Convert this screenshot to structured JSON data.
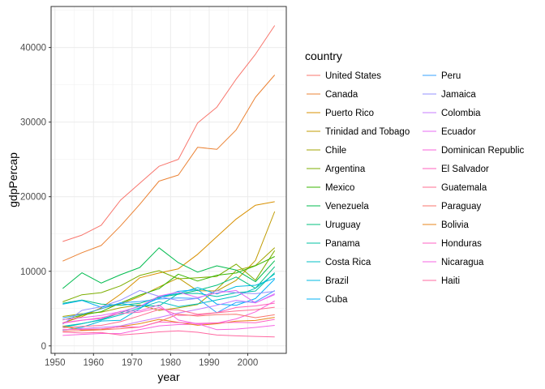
{
  "chart_data": {
    "type": "line",
    "xlabel": "year",
    "ylabel": "gdpPercap",
    "xlim": [
      1949,
      2010
    ],
    "ylim": [
      -1000,
      45500
    ],
    "x_ticks": [
      1950,
      1960,
      1970,
      1980,
      1990,
      2000
    ],
    "x_tick_labels": [
      "1950",
      "1960",
      "1970",
      "1980",
      "1990",
      "2000"
    ],
    "y_ticks": [
      0,
      10000,
      20000,
      30000,
      40000
    ],
    "y_tick_labels": [
      "0",
      "10000",
      "20000",
      "30000",
      "40000"
    ],
    "grid": true,
    "legend_title": "country",
    "legend_position": "right",
    "x": [
      1952,
      1957,
      1962,
      1967,
      1972,
      1977,
      1982,
      1987,
      1992,
      1997,
      2002,
      2007
    ],
    "series": [
      {
        "name": "United States",
        "color": "#F8766D",
        "values": [
          13990,
          14847,
          16173,
          19530,
          21806,
          24073,
          25010,
          29884,
          32004,
          35767,
          39097,
          42952
        ]
      },
      {
        "name": "Canada",
        "color": "#EB8335",
        "values": [
          11367,
          12490,
          13462,
          16077,
          18971,
          22091,
          22899,
          26627,
          26343,
          28955,
          33329,
          36319
        ]
      },
      {
        "name": "Puerto Rico",
        "color": "#D89000",
        "values": [
          3082,
          3908,
          5108,
          6929,
          9123,
          9771,
          10331,
          12281,
          14642,
          16999,
          18856,
          19329
        ]
      },
      {
        "name": "Trinidad and Tobago",
        "color": "#C09B00",
        "values": [
          3023,
          4100,
          4997,
          5621,
          6619,
          7899,
          9119,
          7389,
          7371,
          8793,
          11461,
          18009
        ]
      },
      {
        "name": "Chile",
        "color": "#A3A500",
        "values": [
          3940,
          4316,
          4519,
          5107,
          5494,
          4757,
          5096,
          5547,
          7596,
          10118,
          10779,
          13172
        ]
      },
      {
        "name": "Argentina",
        "color": "#7CAE00",
        "values": [
          5911,
          6857,
          7133,
          8053,
          9443,
          10079,
          8998,
          9140,
          9308,
          10967,
          8798,
          12779
        ]
      },
      {
        "name": "Mexico",
        "color": "#39B600",
        "values": [
          3478,
          4132,
          4582,
          5755,
          6809,
          7675,
          9611,
          8688,
          9472,
          9767,
          10742,
          11978
        ]
      },
      {
        "name": "Venezuela",
        "color": "#00BB4E",
        "values": [
          7690,
          9803,
          8423,
          9541,
          10506,
          13144,
          11152,
          9884,
          10734,
          10165,
          8605,
          11416
        ]
      },
      {
        "name": "Uruguay",
        "color": "#00BF7D",
        "values": [
          5717,
          6151,
          5603,
          5445,
          5703,
          6504,
          6920,
          7452,
          8137,
          9231,
          7727,
          10611
        ]
      },
      {
        "name": "Panama",
        "color": "#00C1A3",
        "values": [
          2480,
          2961,
          3537,
          4421,
          5364,
          5352,
          7009,
          7035,
          6619,
          7114,
          7357,
          9809
        ]
      },
      {
        "name": "Costa Rica",
        "color": "#00BFC4",
        "values": [
          2627,
          2990,
          3461,
          4162,
          5118,
          5926,
          5263,
          5629,
          6160,
          6677,
          7723,
          9645
        ]
      },
      {
        "name": "Brazil",
        "color": "#00BAE0",
        "values": [
          2109,
          2487,
          3337,
          3430,
          4986,
          6660,
          7031,
          7807,
          6950,
          7958,
          8131,
          9066
        ]
      },
      {
        "name": "Cuba",
        "color": "#00B0F6",
        "values": [
          5587,
          6092,
          5181,
          5690,
          5305,
          6380,
          7317,
          7533,
          5593,
          5432,
          6341,
          8948
        ]
      },
      {
        "name": "Peru",
        "color": "#35A2FF",
        "values": [
          3759,
          4245,
          4957,
          5788,
          5938,
          6281,
          6435,
          6361,
          4446,
          5838,
          5909,
          7409
        ]
      },
      {
        "name": "Jamaica",
        "color": "#9590FF",
        "values": [
          2899,
          4756,
          5246,
          6125,
          7433,
          6650,
          6068,
          6351,
          7405,
          7122,
          6995,
          7321
        ]
      },
      {
        "name": "Colombia",
        "color": "#C77CFF",
        "values": [
          2144,
          2324,
          2492,
          2679,
          3265,
          3816,
          4398,
          4904,
          5445,
          6117,
          5755,
          7007
        ]
      },
      {
        "name": "Ecuador",
        "color": "#E76BF3",
        "values": [
          3522,
          3780,
          4086,
          4580,
          5281,
          6680,
          7213,
          6482,
          7104,
          7430,
          5773,
          6873
        ]
      },
      {
        "name": "Dominican Republic",
        "color": "#FA62DB",
        "values": [
          1398,
          1544,
          1662,
          1654,
          2190,
          2682,
          2862,
          2899,
          3044,
          3614,
          4564,
          6025
        ]
      },
      {
        "name": "El Salvador",
        "color": "#FF62BC",
        "values": [
          3048,
          3421,
          3777,
          4359,
          4520,
          5138,
          4098,
          4140,
          4445,
          5154,
          5351,
          5728
        ]
      },
      {
        "name": "Guatemala",
        "color": "#FF6C91",
        "values": [
          2428,
          2617,
          2750,
          3243,
          4031,
          4879,
          4820,
          4246,
          4439,
          4684,
          4858,
          5186
        ]
      },
      {
        "name": "Paraguay",
        "color": "#F8766D",
        "values": [
          1952,
          2047,
          2148,
          2299,
          2523,
          3248,
          4259,
          3999,
          4197,
          4247,
          3784,
          4173
        ]
      },
      {
        "name": "Bolivia",
        "color": "#E7861B",
        "values": [
          2677,
          2127,
          2181,
          2587,
          2980,
          3548,
          3157,
          2754,
          2962,
          3326,
          3413,
          3822
        ]
      },
      {
        "name": "Honduras",
        "color": "#FF61C3",
        "values": [
          2195,
          2220,
          2291,
          2538,
          2529,
          3203,
          3121,
          3023,
          3082,
          3160,
          3099,
          3548
        ]
      },
      {
        "name": "Nicaragua",
        "color": "#F564E3",
        "values": [
          3112,
          3458,
          3634,
          4644,
          4689,
          5487,
          3470,
          2956,
          2171,
          2253,
          2475,
          2749
        ]
      },
      {
        "name": "Haiti",
        "color": "#FF68A1",
        "values": [
          1840,
          1727,
          1797,
          1452,
          1654,
          1875,
          2011,
          1823,
          1456,
          1342,
          1270,
          1202
        ]
      }
    ]
  }
}
